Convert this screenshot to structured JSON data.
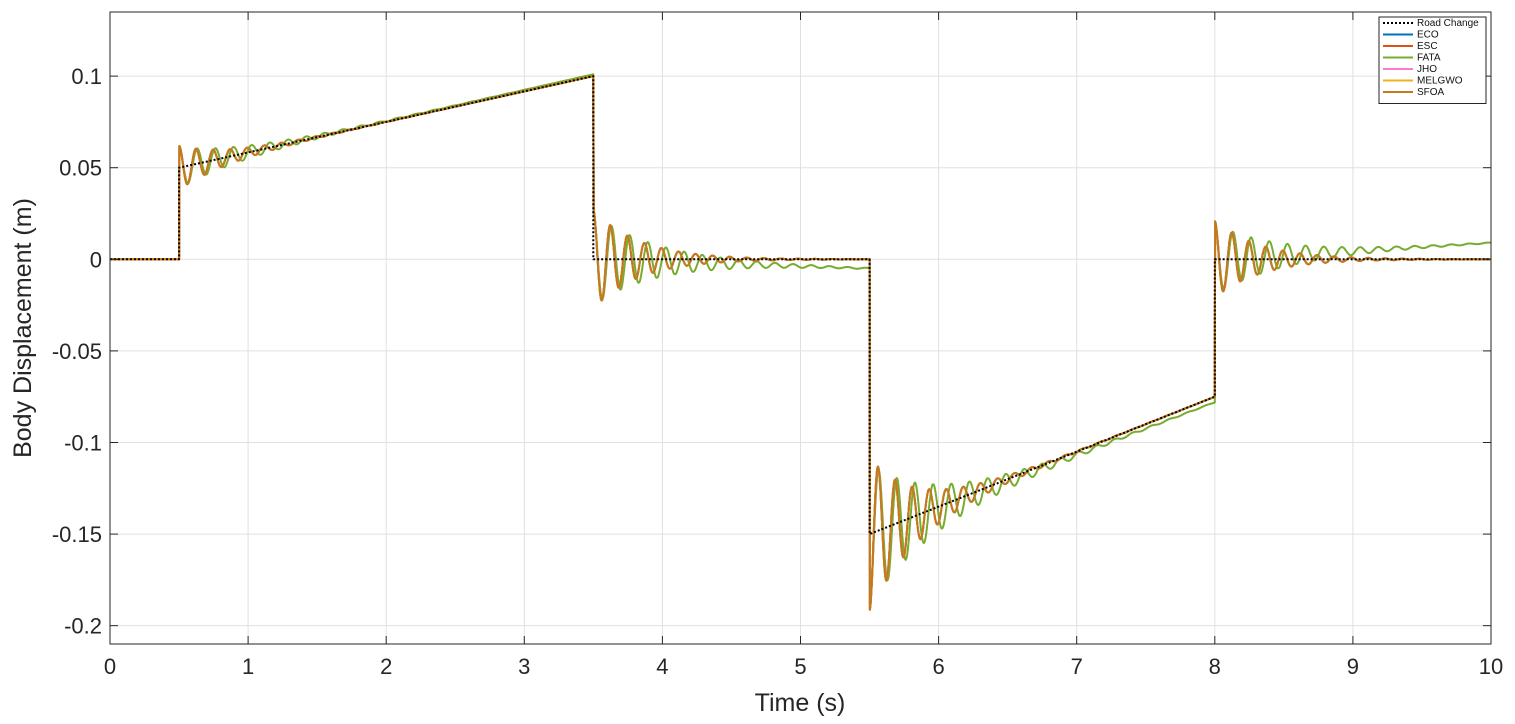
{
  "chart_data": {
    "type": "line",
    "title": "",
    "xlabel": "Time (s)",
    "ylabel": "Body Displacement (m)",
    "xlim": [
      0,
      10
    ],
    "ylim": [
      -0.21,
      0.135
    ],
    "xticks": [
      0,
      1,
      2,
      3,
      4,
      5,
      6,
      7,
      8,
      9,
      10
    ],
    "xtick_labels": [
      "0",
      "1",
      "2",
      "3",
      "4",
      "5",
      "6",
      "7",
      "8",
      "9",
      "10"
    ],
    "yticks": [
      0.1,
      0.05,
      0,
      -0.05,
      -0.1,
      -0.15,
      -0.2
    ],
    "ytick_labels": [
      "0.1",
      "0.05",
      "0",
      "-0.05",
      "-0.1",
      "-0.15",
      "-0.2"
    ],
    "grid": true,
    "legend_position": "top-right",
    "series": [
      {
        "name": "Road Change",
        "color": "#000000",
        "style": "dotted",
        "x": [
          0,
          0.5,
          0.5,
          3.5,
          3.5,
          5.5,
          5.5,
          8.0,
          8.0,
          10
        ],
        "y": [
          0,
          0,
          0.05,
          0.1,
          0,
          0,
          -0.15,
          -0.075,
          0,
          0
        ]
      },
      {
        "name": "ECO",
        "color": "#0072BD",
        "style": "solid",
        "variant": "base",
        "x": [
          0,
          0.5,
          0.5,
          3.5,
          3.5,
          5.5,
          5.5,
          8.0,
          8.0,
          10
        ],
        "y": [
          0,
          0,
          0.05,
          0.1,
          0,
          0,
          -0.15,
          -0.075,
          0,
          0
        ]
      },
      {
        "name": "ESC",
        "color": "#D95319",
        "style": "solid",
        "variant": "base",
        "x": [
          0,
          0.5,
          0.5,
          3.5,
          3.5,
          5.5,
          5.5,
          8.0,
          8.0,
          10
        ],
        "y": [
          0,
          0,
          0.05,
          0.1,
          0,
          0,
          -0.15,
          -0.075,
          0,
          0
        ]
      },
      {
        "name": "FATA",
        "color": "#77AC30",
        "style": "solid",
        "variant": "fata",
        "x": [
          0,
          0.5,
          0.5,
          3.5,
          3.5,
          5.5,
          5.5,
          8.0,
          8.0,
          10
        ],
        "y": [
          0,
          0,
          0.05,
          0.101,
          0,
          -0.005,
          -0.15,
          -0.078,
          0,
          0.009
        ]
      },
      {
        "name": "JHO",
        "color": "#FF77D4",
        "style": "solid",
        "variant": "base",
        "x": [
          0,
          0.5,
          0.5,
          3.5,
          3.5,
          5.5,
          5.5,
          8.0,
          8.0,
          10
        ],
        "y": [
          0,
          0,
          0.05,
          0.1,
          0,
          0,
          -0.15,
          -0.075,
          0,
          0
        ]
      },
      {
        "name": "MELGWO",
        "color": "#EDB120",
        "style": "solid",
        "variant": "base",
        "x": [
          0,
          0.5,
          0.5,
          3.5,
          3.5,
          5.5,
          5.5,
          8.0,
          8.0,
          10
        ],
        "y": [
          0,
          0,
          0.05,
          0.1,
          0,
          0,
          -0.15,
          -0.075,
          0,
          0
        ]
      },
      {
        "name": "SFOA",
        "color": "#C27A1E",
        "style": "solid",
        "variant": "base",
        "x": [
          0,
          0.5,
          0.5,
          3.5,
          3.5,
          5.5,
          5.5,
          8.0,
          8.0,
          10
        ],
        "y": [
          0,
          0,
          0.05,
          0.1,
          0,
          0,
          -0.15,
          -0.075,
          0,
          0
        ]
      }
    ]
  }
}
